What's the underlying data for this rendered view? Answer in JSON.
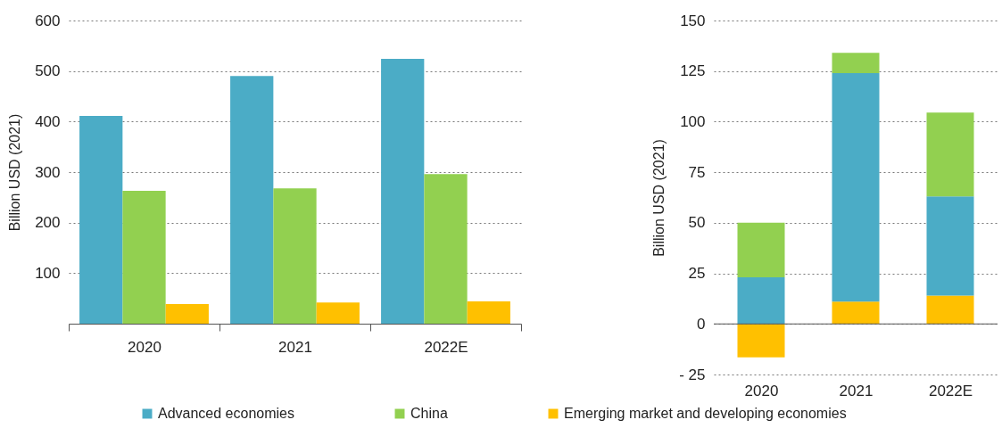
{
  "chart_data": [
    {
      "type": "bar",
      "ylabel": "Billion USD (2021)",
      "categories": [
        "2020",
        "2021",
        "2022E"
      ],
      "ylim": [
        0,
        600
      ],
      "yticks": [
        100,
        200,
        300,
        400,
        500,
        600
      ],
      "grid": "y",
      "legend": "bottom",
      "series": [
        {
          "name": "Advanced economies",
          "color": "#4bacc6",
          "values": [
            411,
            490,
            524
          ]
        },
        {
          "name": "China",
          "color": "#92d050",
          "values": [
            263,
            268,
            296
          ]
        },
        {
          "name": "Emerging market and developing economies",
          "color": "#ffc000",
          "values": [
            39,
            42,
            44
          ]
        }
      ]
    },
    {
      "type": "bar",
      "ylabel": "Billion USD (2021)",
      "categories": [
        "2020",
        "2021",
        "2022E"
      ],
      "ylim": [
        -25,
        150
      ],
      "yticks": [
        {
          "value": -25,
          "label": "- 25"
        },
        0,
        25,
        50,
        75,
        100,
        125,
        150
      ],
      "grid": "y",
      "stacked": true,
      "series": [
        {
          "name": "Emerging market and developing economies",
          "color": "#ffc000",
          "values": [
            -16.5,
            11,
            14
          ]
        },
        {
          "name": "Advanced economies",
          "color": "#4bacc6",
          "values": [
            23,
            113,
            49
          ]
        },
        {
          "name": "China",
          "color": "#92d050",
          "values": [
            27,
            10,
            41.5
          ]
        }
      ]
    }
  ]
}
